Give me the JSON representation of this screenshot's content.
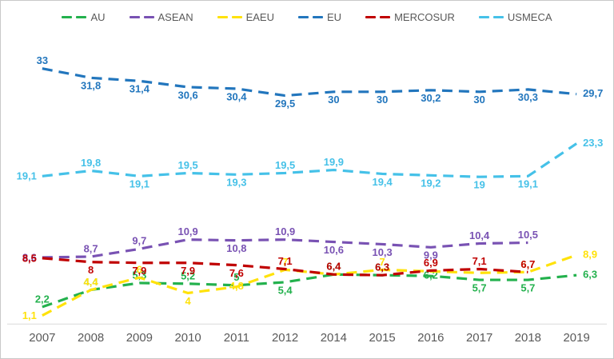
{
  "chart_data": {
    "type": "line",
    "title": "",
    "xlabel": "",
    "ylabel": "",
    "ylim": [
      0,
      35
    ],
    "grid": false,
    "legend_position": "top",
    "decimal_separator": ",",
    "line_style": "dashed",
    "categories": [
      "2007",
      "2008",
      "2009",
      "2010",
      "2011",
      "2012",
      "2014",
      "2015",
      "2016",
      "2017",
      "2018",
      "2019"
    ],
    "series": [
      {
        "name": "AU",
        "color": "#23b14d",
        "values": [
          2.2,
          4.4,
          5.3,
          5.2,
          5,
          5.4,
          6.4,
          6.3,
          6.2,
          5.7,
          5.7,
          6.3
        ],
        "labels": [
          "2,2",
          "4,4",
          "5,3",
          "5,2",
          "5",
          "5,4",
          "6,4",
          "6,3",
          "6,2",
          "5,7",
          "5,7",
          "6,3"
        ]
      },
      {
        "name": "ASEAN",
        "color": "#7952b3",
        "values": [
          8.6,
          8.7,
          9.7,
          10.9,
          10.8,
          10.9,
          10.6,
          10.3,
          9.9,
          10.4,
          10.5,
          null
        ],
        "labels": [
          "8,6",
          "8,7",
          "9,7",
          "10,9",
          "10,8",
          "10,9",
          "10,6",
          "10,3",
          "9,9",
          "10,4",
          "10,5",
          ""
        ]
      },
      {
        "name": "EAEU",
        "color": "#ffe20a",
        "values": [
          1.1,
          4.4,
          6,
          4,
          4.8,
          7,
          6.4,
          7,
          6.8,
          6.6,
          6.7,
          8.9
        ],
        "labels": [
          "1,1",
          "4,4",
          "6",
          "4",
          "4,8",
          "7",
          "",
          "7",
          "",
          "",
          "6,7",
          "8,9"
        ]
      },
      {
        "name": "EU",
        "color": "#2276bd",
        "values": [
          33,
          31.8,
          31.4,
          30.6,
          30.4,
          29.5,
          30,
          30,
          30.2,
          30,
          30.3,
          29.7
        ],
        "labels": [
          "33",
          "31,8",
          "31,4",
          "30,6",
          "30,4",
          "29,5",
          "30",
          "30",
          "30,2",
          "30",
          "30,3",
          "29,7"
        ]
      },
      {
        "name": "MERCOSUR",
        "color": "#c00000",
        "values": [
          8.5,
          8,
          7.9,
          7.9,
          7.6,
          7.1,
          6.4,
          6.3,
          6.9,
          7.1,
          6.7,
          null
        ],
        "labels": [
          "8,5",
          "8",
          "7,9",
          "7,9",
          "7,6",
          "7,1",
          "6,4",
          "6,3",
          "6,9",
          "7,1",
          "6,7",
          ""
        ]
      },
      {
        "name": "USMECA",
        "color": "#45c1e8",
        "values": [
          19.1,
          19.8,
          19.1,
          19.5,
          19.3,
          19.5,
          19.9,
          19.4,
          19.2,
          19,
          19.1,
          23.3
        ],
        "labels": [
          "19,1",
          "19,8",
          "19,1",
          "19,5",
          "19,3",
          "19,5",
          "19,9",
          "19,4",
          "19,2",
          "19",
          "19,1",
          "23,3"
        ]
      }
    ],
    "colors": {
      "axis_line": "#d9d9d9",
      "tick_text": "#595959",
      "legend_text": "#595959",
      "background": "#ffffff"
    }
  }
}
